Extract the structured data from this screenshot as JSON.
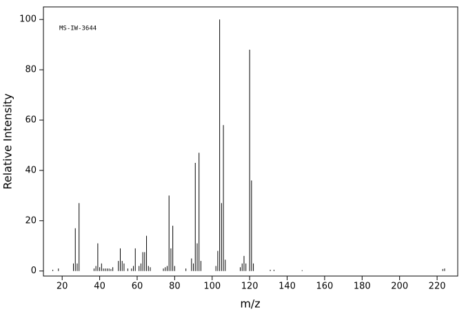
{
  "chart_data": {
    "type": "stick",
    "annotation": "MS-IW-3644",
    "x_label": "m/z",
    "y_label": "Relative Intensity",
    "color": "#000000",
    "x": [
      15,
      18,
      26,
      27,
      28,
      29,
      37,
      38,
      39,
      40,
      41,
      42,
      43,
      44,
      45,
      46,
      47,
      50,
      51,
      52,
      53,
      55,
      57,
      58,
      59,
      61,
      62,
      63,
      64,
      65,
      66,
      67,
      74,
      75,
      76,
      77,
      78,
      79,
      80,
      86,
      89,
      90,
      91,
      92,
      93,
      94,
      102,
      103,
      104,
      105,
      106,
      107,
      115,
      116,
      117,
      118,
      120,
      121,
      122,
      131,
      133,
      148,
      223,
      224
    ],
    "values": [
      0.5,
      1,
      3,
      17,
      3,
      27,
      1,
      2,
      11,
      1.5,
      3,
      1,
      1,
      1,
      1,
      0.8,
      1.5,
      4,
      9,
      4,
      3,
      1,
      1,
      2,
      9,
      2,
      3,
      7.5,
      7.5,
      14,
      2,
      1.5,
      1,
      1.5,
      2,
      30,
      9,
      18,
      2,
      1,
      5,
      3,
      43,
      11,
      47,
      4,
      2,
      8,
      100,
      27,
      58,
      4.5,
      1.5,
      3,
      6,
      3,
      88,
      36,
      3,
      0.5,
      0.5,
      0.3,
      0.8,
      1
    ],
    "xlim": [
      10,
      231
    ],
    "ylim": [
      -2,
      105
    ],
    "xticks": [
      20,
      40,
      60,
      80,
      100,
      120,
      140,
      160,
      180,
      200,
      220
    ],
    "yticks": [
      0,
      20,
      40,
      60,
      80,
      100
    ]
  }
}
